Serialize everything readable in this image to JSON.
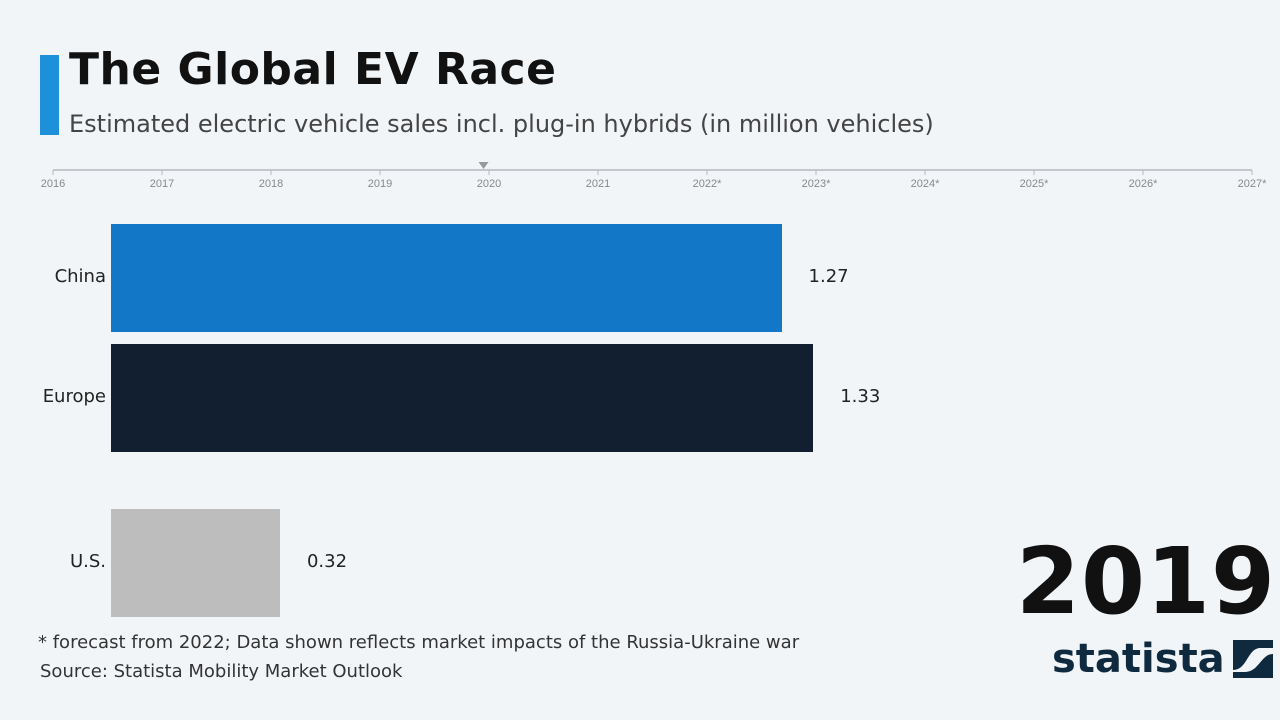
{
  "header": {
    "title": "The Global EV Race",
    "subtitle": "Estimated electric vehicle sales incl. plug-in hybrids (in million vehicles)",
    "accent_color": "#1e8fd9"
  },
  "timeline": {
    "ticks": [
      "2016",
      "2017",
      "2018",
      "2019",
      "2020",
      "2021",
      "2022*",
      "2023*",
      "2024*",
      "2025*",
      "2026*",
      "2027*"
    ],
    "current_position": 2019.95
  },
  "chart_data": {
    "type": "bar",
    "orientation": "horizontal",
    "current_year": "2019",
    "categories": [
      "China",
      "Europe",
      "U.S."
    ],
    "values": [
      1.27,
      1.33,
      0.32
    ],
    "value_labels": [
      "1.27",
      "1.33",
      "0.32"
    ],
    "colors": [
      "#1177c6",
      "#121f31",
      "#bdbdbd"
    ],
    "xlim": [
      0,
      2.3
    ]
  },
  "footer": {
    "note": "* forecast from 2022; Data shown reflects market impacts of the Russia-Ukraine war",
    "source": "Source:  Statista Mobility Market Outlook"
  },
  "logo": {
    "text": "statista",
    "color": "#0f2a3f"
  }
}
